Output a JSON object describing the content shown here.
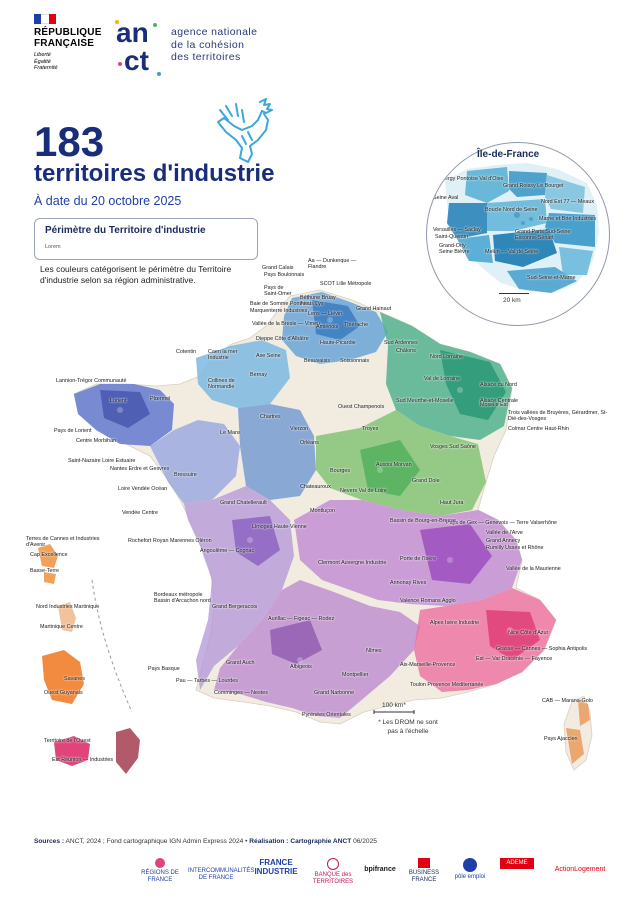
{
  "header": {
    "republique": [
      "RÉPUBLIQUE",
      "FRANÇAISE"
    ],
    "motto": [
      "Liberté",
      "Égalité",
      "Fraternité"
    ],
    "anct_logo_text": [
      "an",
      "ct"
    ],
    "anct_name": [
      "agence nationale",
      "de la cohésion",
      "des territoires"
    ]
  },
  "title": {
    "number": "183",
    "label": "territoires d'industrie",
    "date": "À date du 20 octobre 2025"
  },
  "legend": {
    "title": "Périmètre du Territoire d'industrie",
    "sub": "Lorem",
    "note": "Les couleurs catégorisent le périmètre du Territoire d'industrie selon sa région administrative."
  },
  "inset": {
    "title": "Île-de-France",
    "scale": "20 km",
    "labels": [
      "Cergy Pontoise Val d'Oise",
      "Grand Roissy Le Bourget",
      "Seine Aval",
      "Nord Est 77 — Meaux",
      "Boucle Nord de Seine",
      "Marne et Brie Industries",
      "Versailles — Saclay",
      "Saint-Quentin",
      "Grand Paris Sud-Seine Essonne-Sénart",
      "Grand-Orly Seine Bièvre",
      "Melun — Val de Seine",
      "Sud-Seine-et-Marne"
    ]
  },
  "map_labels": [
    "Grand Calais",
    "Pays Boulonnais",
    "Pays de Saint-Omer",
    "Aa — Dunkerque — Flandre",
    "SCOT Lille Métropole",
    "Béthune Bruay Artois Lys",
    "Grand Hainaut",
    "Lens — Liévin",
    "Baie de Somme Ponthieu",
    "Marquenterre Industries",
    "Vallée de la Bresle — Vimeu",
    "Amiénois",
    "Thiérache",
    "Dieppe Côte d'Albâtre",
    "Haute-Picardie",
    "Sud Ardennes",
    "Caen la mer Industrie",
    "Cotentin",
    "Axe Seine",
    "Beauvaisis",
    "Soissonnais",
    "Châlons",
    "Nord Lorraine",
    "Val de Lorraine",
    "Alsace du Nord",
    "Lannion-Trégor Communauté",
    "Collines de Normandie",
    "Bernay",
    "Lorient",
    "Plœrmel",
    "Centre Morbihan",
    "Pays de Lorient",
    "Ouest Champenois",
    "Moselle Est",
    "Trois vallées de Bruyères, Gérardmer, St-Dié-des-Vosges",
    "Colmar Centre Haut-Rhin",
    "Alsace Centrale",
    "Sud Meurthe-et-Moselle",
    "Vosges Sud Saône",
    "Saint-Nazaire Loire Estuaire",
    "Nantes Erdre et Gesvres",
    "Le Mans",
    "Chartres",
    "Orléans",
    "Auxois Morvan",
    "Grand Dole",
    "Loire Vendée Océan",
    "Vendée Centre",
    "Bressuire",
    "Grand Chatellerault",
    "Haut Jura",
    "Pays de Gex — Genevois — Terre Valserhône",
    "Vallée de l'Arve",
    "Grand Annecy",
    "Rumilly Usses et Rhône",
    "Terres de Cannes et Industries d'Avenir",
    "Cap Excellence",
    "Basse-Terre",
    "Nord Industries Martinique",
    "Martinique Centre",
    "Rochefort Royan Marennes Oléron",
    "Angoulême — Cognac",
    "Limoges Haute-Vienne",
    "Clermont Auvergne Industrie",
    "Vallée de la Maurienne",
    "Bordeaux métropole Bassin d'Arcachon nord",
    "Grand Bergeracois",
    "Aurillac — Figeac — Rodez",
    "Alpes Isère Industrie",
    "Nice Côte d'Azur",
    "Grasse — Cannes — Sophia Antipolis",
    "Est — Var Dracénie — Fayence",
    "Savanes",
    "Ouest Guyanais",
    "Pays Basque",
    "Pau — Tarbes — Lourdes",
    "Comminges — Nestes",
    "Grand Narbonne",
    "Pyrénées Orientales",
    "Aix-Marseille-Provence",
    "Toulon Provence Méditerranée",
    "Territoire de l'Ouest",
    "Est Réunion — Industries",
    "CAB — Marana-Golo",
    "Pays Ajaccien",
    "Grand Auch",
    "Albigeois",
    "Nîmes",
    "Montpellier",
    "Bassin de Bourg-en-Bresse",
    "Porte de l'Isère",
    "Annonay Rives",
    "Valence Romans Agglo",
    "Bourges",
    "Chateauroux",
    "Vierzon",
    "Montluçon",
    "Nevers Val de Loire",
    "Troyes"
  ],
  "scale": {
    "label": "100 km*",
    "note": "* Les DROM ne sont pas à l'échelle"
  },
  "sources": {
    "prefix": "Sources :",
    "text": " ANCT, 2024 ; Fond cartographique IGN Admin Express 2024 • ",
    "real_label": "Réalisation :",
    "real_text": " Cartographie ANCT",
    "date": " 06/2025"
  },
  "partners": [
    "RÉGIONS DE FRANCE",
    "INTERCOMMUNALITÉS DE FRANCE",
    "FRANCE INDUSTRIE",
    "BANQUE des TERRITOIRES",
    "bpifrance",
    "BUSINESS FRANCE",
    "pôle emploi",
    "ADEME",
    "ActionLogement"
  ],
  "colors": {
    "hdf": "#4f8fcf",
    "grandest": "#3aa77f",
    "bretagne": "#5466b8",
    "normandie": "#5a9fd8",
    "cvl": "#4a78b8",
    "bfc": "#4fb26a",
    "nouvelle_aquitaine": "#8a5fbf",
    "ara": "#a04fb8",
    "occitanie": "#9a63b0",
    "paca": "#e0447a",
    "overseas": "#e88a40",
    "base": "#f2ece0"
  }
}
